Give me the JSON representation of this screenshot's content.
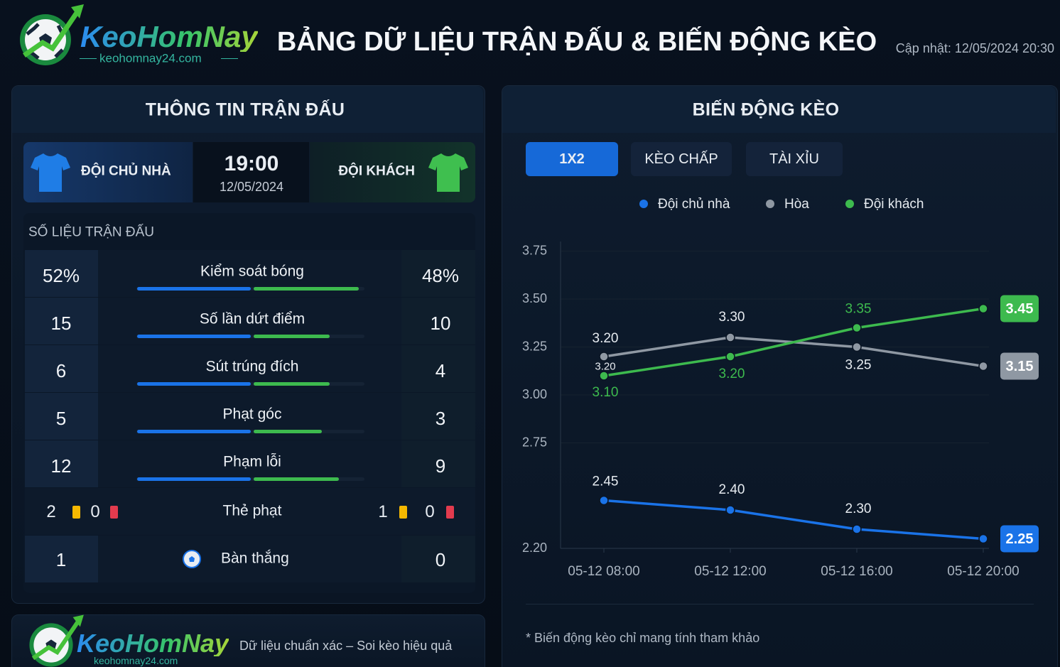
{
  "header": {
    "logo_text": "KeoHomNay",
    "logo_domain": "keohomnay24.com",
    "title": "BẢNG DỮ LIỆU TRẬN ĐẤU & BIẾN ĐỘNG KÈO",
    "updated": "Cập nhật: 12/05/2024 20:30"
  },
  "match": {
    "title": "THÔNG TIN TRẬN ĐẤU",
    "home": "ĐỘI CHỦ NHÀ",
    "away": "ĐỘI KHÁCH",
    "time": "19:00",
    "date": "12/05/2024"
  },
  "stats": {
    "title": "SỐ LIỆU TRẬN ĐẤU",
    "rows": [
      {
        "label": "Kiểm soát bóng",
        "home": 52,
        "away": 48,
        "home_label": "52%",
        "away_label": "48%"
      },
      {
        "label": "Số lần dứt điểm",
        "home": 15,
        "away": 10
      },
      {
        "label": "Sút trúng đích",
        "home": 6,
        "away": 4
      },
      {
        "label": "Phạt góc",
        "home": 5,
        "away": 3
      },
      {
        "label": "Phạm lỗi",
        "home": 12,
        "away": 9
      }
    ],
    "cards": {
      "label": "Thẻ phạt",
      "home_yellow": 2,
      "home_red": 0,
      "away_yellow": 1,
      "away_red": 0
    },
    "goals": {
      "label": "Bàn thắng",
      "home": 1,
      "away": 0
    }
  },
  "footer": {
    "logo_text": "KeoHomNay",
    "logo_domain": "keohomnay24.com",
    "slogan": "Dữ liệu chuẩn xác – Soi kèo hiệu quả"
  },
  "odds": {
    "title": "BIẾN ĐỘNG KÈO",
    "tabs": [
      "1X2",
      "KÈO CHẤP",
      "TÀI XỈU"
    ],
    "active_tab": 0,
    "note": "* Biến động kèo chỉ mang tính tham khảo"
  },
  "chart_data": {
    "type": "line",
    "categories": [
      "05-12 08:00",
      "05-12 12:00",
      "05-12 16:00",
      "05-12 20:00"
    ],
    "series": [
      {
        "name": "Đội chủ nhà",
        "color": "#1a73e8",
        "values": [
          2.45,
          2.4,
          2.3,
          2.25
        ],
        "value_labels": [
          "2.45",
          "2.40",
          "2.30",
          "2.25"
        ]
      },
      {
        "name": "Hòa",
        "color": "#8f98a3",
        "values": [
          3.2,
          3.3,
          3.25,
          3.15
        ],
        "value_labels": [
          "3.20",
          "3.30",
          "3.25",
          "3.15"
        ]
      },
      {
        "name": "Đội khách",
        "color": "#3dba4e",
        "values": [
          3.1,
          3.2,
          3.35,
          3.45
        ],
        "value_labels": [
          "3.10",
          "3.20",
          "3.35",
          "3.45"
        ]
      }
    ],
    "annotations": [
      "3.20"
    ],
    "ylim": [
      2.2,
      3.8
    ],
    "yticks": [
      3.75,
      {
        "value": 3.5,
        "label": "3.50"
      },
      3.25,
      {
        "value": 3,
        "label": "3.00"
      },
      2.75,
      {
        "value": 2.2,
        "label": "2.20"
      }
    ],
    "grid": true,
    "legend": "top"
  }
}
